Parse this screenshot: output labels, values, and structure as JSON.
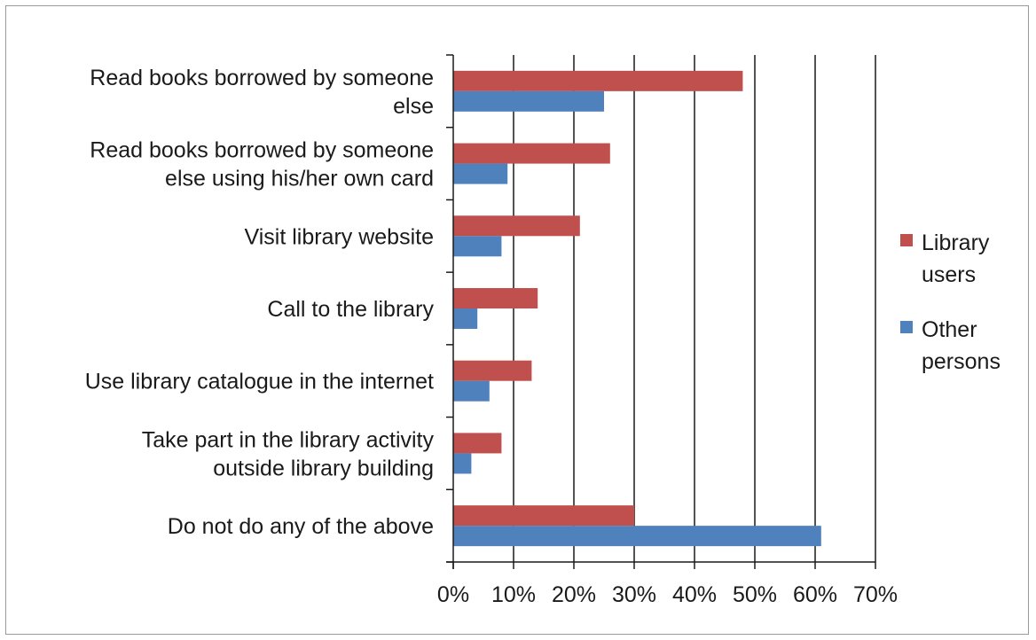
{
  "chart_data": {
    "type": "bar",
    "orientation": "horizontal",
    "title": "",
    "xlabel": "",
    "ylabel": "",
    "categories": [
      [
        "Read books borrowed by someone",
        "else"
      ],
      [
        "Read books borrowed by someone",
        "else using his/her own card"
      ],
      [
        "Visit library website"
      ],
      [
        "Call to the library"
      ],
      [
        "Use library catalogue in the internet"
      ],
      [
        "Take part in the library activity",
        "outside library building"
      ],
      [
        "Do not do any of the above"
      ]
    ],
    "series": [
      {
        "name": [
          "Library",
          "users"
        ],
        "color": "#c0504d",
        "values": [
          48,
          26,
          21,
          14,
          13,
          8,
          30
        ]
      },
      {
        "name": [
          "Other",
          "persons"
        ],
        "color": "#4f81bd",
        "values": [
          25,
          9,
          8,
          4,
          6,
          3,
          61
        ]
      }
    ],
    "xlim": [
      0,
      70
    ],
    "xticks": [
      0,
      10,
      20,
      30,
      40,
      50,
      60,
      70
    ],
    "tick_format": "%",
    "grid": true,
    "legend_position": "right"
  }
}
